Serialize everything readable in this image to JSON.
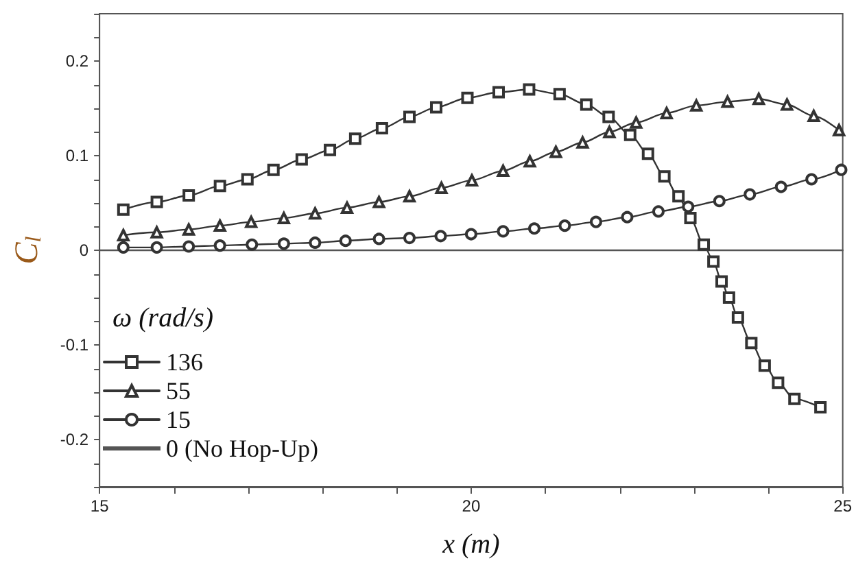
{
  "chart_data": {
    "type": "line",
    "xlabel": "x (m)",
    "ylabel": "C$_{l}$",
    "legend_title": "ω (rad/s)",
    "legend": "bottom left",
    "grid": false,
    "line_style": "solid",
    "xlim": [
      15,
      25
    ],
    "ylim": [
      -0.25,
      0.25
    ],
    "xticks": [
      15,
      {
        "value": 16,
        "label": null
      },
      {
        "value": 17,
        "label": null
      },
      {
        "value": 18,
        "label": null
      },
      {
        "value": 19,
        "label": null
      },
      20,
      {
        "value": 21,
        "label": null
      },
      {
        "value": 22,
        "label": null
      },
      {
        "value": 23,
        "label": null
      },
      {
        "value": 24,
        "label": null
      },
      25
    ],
    "yticks": [
      {
        "value": -0.25,
        "label": null
      },
      {
        "value": -0.225,
        "label": null
      },
      {
        "value": -0.2,
        "label": "-0.2"
      },
      {
        "value": -0.175,
        "label": null
      },
      {
        "value": -0.15,
        "label": null
      },
      {
        "value": -0.125,
        "label": null
      },
      {
        "value": -0.1,
        "label": "-0.1"
      },
      {
        "value": -0.075,
        "label": null
      },
      {
        "value": -0.05,
        "label": null
      },
      {
        "value": -0.025,
        "label": null
      },
      0,
      {
        "value": 0.025,
        "label": null
      },
      {
        "value": 0.05,
        "label": null
      },
      {
        "value": 0.075,
        "label": null
      },
      {
        "value": 0.1,
        "label": "0.1"
      },
      {
        "value": 0.125,
        "label": null
      },
      {
        "value": 0.15,
        "label": null
      },
      {
        "value": 0.175,
        "label": null
      },
      {
        "value": 0.2,
        "label": "0.2"
      },
      {
        "value": 0.225,
        "label": null
      },
      {
        "value": 0.25,
        "label": null
      }
    ],
    "series": [
      {
        "name": "136",
        "color": "#333333",
        "marker": "square",
        "x": [
          15.32,
          15.77,
          16.2,
          16.62,
          16.99,
          17.34,
          17.72,
          18.1,
          18.44,
          18.8,
          19.17,
          19.53,
          19.95,
          20.37,
          20.78,
          21.19,
          21.55,
          21.85,
          22.14,
          22.38,
          22.6,
          22.79,
          22.95,
          23.13,
          23.26,
          23.37,
          23.47,
          23.59,
          23.77,
          23.95,
          24.13,
          24.35,
          24.7
        ],
        "values": [
          0.043,
          0.051,
          0.058,
          0.068,
          0.075,
          0.085,
          0.096,
          0.106,
          0.118,
          0.129,
          0.141,
          0.151,
          0.161,
          0.167,
          0.17,
          0.165,
          0.154,
          0.141,
          0.122,
          0.102,
          0.078,
          0.057,
          0.034,
          0.006,
          -0.012,
          -0.033,
          -0.05,
          -0.071,
          -0.098,
          -0.122,
          -0.14,
          -0.157,
          -0.166
        ]
      },
      {
        "name": "55",
        "color": "#333333",
        "marker": "triangle",
        "x": [
          15.32,
          15.77,
          16.2,
          16.62,
          17.04,
          17.48,
          17.9,
          18.33,
          18.76,
          19.17,
          19.6,
          20.01,
          20.43,
          20.79,
          21.14,
          21.5,
          21.86,
          22.22,
          22.63,
          23.03,
          23.45,
          23.87,
          24.25,
          24.61,
          24.95
        ],
        "values": [
          0.016,
          0.019,
          0.022,
          0.026,
          0.03,
          0.034,
          0.039,
          0.045,
          0.051,
          0.057,
          0.066,
          0.074,
          0.084,
          0.094,
          0.104,
          0.114,
          0.125,
          0.135,
          0.145,
          0.153,
          0.157,
          0.16,
          0.154,
          0.142,
          0.127
        ]
      },
      {
        "name": "15",
        "color": "#333333",
        "marker": "circle",
        "x": [
          15.32,
          15.77,
          16.2,
          16.62,
          17.05,
          17.48,
          17.9,
          18.31,
          18.76,
          19.17,
          19.59,
          20.0,
          20.43,
          20.85,
          21.26,
          21.68,
          22.1,
          22.52,
          22.92,
          23.34,
          23.75,
          24.17,
          24.58,
          24.98
        ],
        "values": [
          0.003,
          0.003,
          0.004,
          0.005,
          0.006,
          0.007,
          0.008,
          0.01,
          0.012,
          0.013,
          0.015,
          0.017,
          0.02,
          0.023,
          0.026,
          0.03,
          0.035,
          0.041,
          0.046,
          0.052,
          0.059,
          0.067,
          0.075,
          0.085
        ]
      },
      {
        "name": "0 (No Hop-Up)",
        "color": "#555555",
        "marker": "none",
        "x": [
          15,
          25
        ],
        "values": [
          0,
          0
        ]
      }
    ]
  }
}
